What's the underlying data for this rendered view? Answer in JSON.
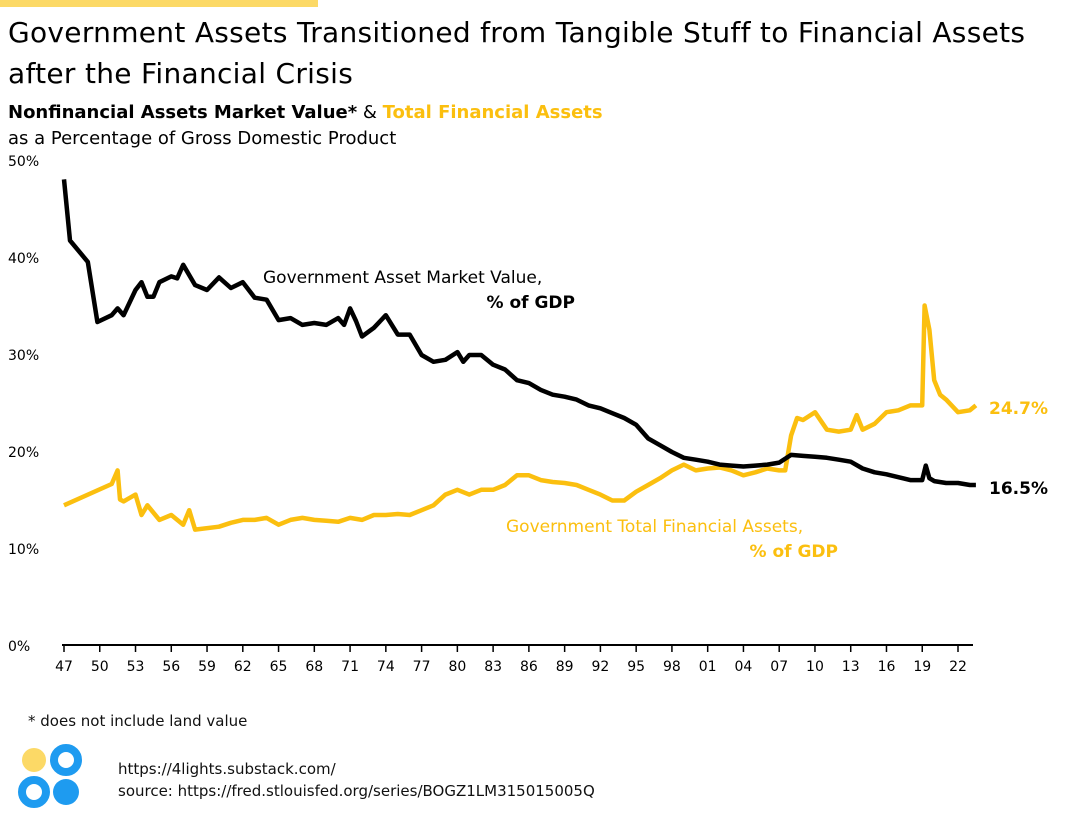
{
  "header": {
    "title": "Government Assets Transitioned from Tangible Stuff to Financial Assets after the Financial Crisis",
    "subtitle_part1": "Nonfinancial Assets Market Value*",
    "subtitle_amp": " & ",
    "subtitle_part2": "Total Financial Assets",
    "subtitle_line2": "as a Percentage of Gross Domestic Product"
  },
  "colors": {
    "nonfinancial": "#000000",
    "financial": "#fbbf0f",
    "accent_bar": "#fcd966",
    "logo_blue": "#1e9bf0",
    "logo_yellow": "#fcd966"
  },
  "chart_data": {
    "type": "line",
    "title": "Government Assets Transitioned from Tangible Stuff to Financial Assets after the Financial Crisis",
    "ylabel": "% of GDP",
    "ylim": [
      0,
      50
    ],
    "xlim": [
      1947,
      2023.5
    ],
    "y_ticks": [
      "0%",
      "10%",
      "20%",
      "30%",
      "40%",
      "50%"
    ],
    "y_tick_values": [
      0,
      10,
      20,
      30,
      40,
      50
    ],
    "x_ticks": [
      "47",
      "50",
      "53",
      "56",
      "59",
      "62",
      "65",
      "68",
      "71",
      "74",
      "77",
      "80",
      "83",
      "86",
      "89",
      "92",
      "95",
      "98",
      "01",
      "04",
      "07",
      "10",
      "13",
      "16",
      "19",
      "22"
    ],
    "grid": false,
    "series": [
      {
        "name": "Government Asset Market Value, % of GDP",
        "label_line1": "Government Asset Market Value,",
        "label_line2": "% of GDP",
        "end_label": "16.5%",
        "points": [
          [
            1947,
            48
          ],
          [
            1947.5,
            41.7
          ],
          [
            1949,
            39.5
          ],
          [
            1949.8,
            33.3
          ],
          [
            1951,
            34
          ],
          [
            1951.5,
            34.7
          ],
          [
            1952,
            34
          ],
          [
            1953,
            36.6
          ],
          [
            1953.5,
            37.4
          ],
          [
            1954,
            35.9
          ],
          [
            1954.5,
            35.9
          ],
          [
            1955,
            37.4
          ],
          [
            1956,
            38
          ],
          [
            1956.5,
            37.8
          ],
          [
            1957,
            39.2
          ],
          [
            1958,
            37.1
          ],
          [
            1959,
            36.6
          ],
          [
            1960,
            37.9
          ],
          [
            1961,
            36.8
          ],
          [
            1962,
            37.4
          ],
          [
            1963,
            35.8
          ],
          [
            1964,
            35.6
          ],
          [
            1965,
            33.5
          ],
          [
            1966,
            33.7
          ],
          [
            1967,
            33
          ],
          [
            1968,
            33.2
          ],
          [
            1969,
            33
          ],
          [
            1970,
            33.7
          ],
          [
            1970.5,
            33
          ],
          [
            1971,
            34.7
          ],
          [
            1971.5,
            33.4
          ],
          [
            1972,
            31.8
          ],
          [
            1973,
            32.7
          ],
          [
            1974,
            34
          ],
          [
            1975,
            32
          ],
          [
            1976,
            32
          ],
          [
            1977,
            29.9
          ],
          [
            1978,
            29.2
          ],
          [
            1979,
            29.4
          ],
          [
            1980,
            30.2
          ],
          [
            1980.5,
            29.2
          ],
          [
            1981,
            29.9
          ],
          [
            1982,
            29.9
          ],
          [
            1983,
            28.9
          ],
          [
            1984,
            28.4
          ],
          [
            1985,
            27.3
          ],
          [
            1986,
            27
          ],
          [
            1987,
            26.3
          ],
          [
            1988,
            25.8
          ],
          [
            1989,
            25.6
          ],
          [
            1990,
            25.3
          ],
          [
            1991,
            24.7
          ],
          [
            1992,
            24.4
          ],
          [
            1993,
            23.9
          ],
          [
            1994,
            23.4
          ],
          [
            1995,
            22.7
          ],
          [
            1996,
            21.3
          ],
          [
            1997,
            20.6
          ],
          [
            1998,
            19.9
          ],
          [
            1999,
            19.3
          ],
          [
            2000,
            19.1
          ],
          [
            2001,
            18.9
          ],
          [
            2002,
            18.6
          ],
          [
            2003,
            18.5
          ],
          [
            2004,
            18.4
          ],
          [
            2005,
            18.5
          ],
          [
            2006,
            18.6
          ],
          [
            2007,
            18.8
          ],
          [
            2008,
            19.6
          ],
          [
            2009,
            19.5
          ],
          [
            2010,
            19.4
          ],
          [
            2011,
            19.3
          ],
          [
            2012,
            19.1
          ],
          [
            2013,
            18.9
          ],
          [
            2014,
            18.2
          ],
          [
            2015,
            17.8
          ],
          [
            2016,
            17.6
          ],
          [
            2017,
            17.3
          ],
          [
            2018,
            17
          ],
          [
            2019,
            17
          ],
          [
            2019.3,
            18.5
          ],
          [
            2019.6,
            17.2
          ],
          [
            2020,
            16.9
          ],
          [
            2021,
            16.7
          ],
          [
            2022,
            16.7
          ],
          [
            2023,
            16.5
          ],
          [
            2023.5,
            16.5
          ]
        ]
      },
      {
        "name": "Government Total Financial Assets, % of GDP",
        "label_line1": "Government Total Financial Assets,",
        "label_line2": "% of GDP",
        "end_label": "24.7%",
        "points": [
          [
            1947,
            14.4
          ],
          [
            1951,
            16.6
          ],
          [
            1951.5,
            18
          ],
          [
            1951.7,
            15
          ],
          [
            1952,
            14.8
          ],
          [
            1953,
            15.5
          ],
          [
            1953.5,
            13.4
          ],
          [
            1954,
            14.4
          ],
          [
            1955,
            12.9
          ],
          [
            1956,
            13.4
          ],
          [
            1957,
            12.4
          ],
          [
            1957.5,
            13.9
          ],
          [
            1958,
            11.9
          ],
          [
            1960,
            12.2
          ],
          [
            1961,
            12.6
          ],
          [
            1962,
            12.9
          ],
          [
            1963,
            12.9
          ],
          [
            1964,
            13.1
          ],
          [
            1965,
            12.4
          ],
          [
            1966,
            12.9
          ],
          [
            1967,
            13.1
          ],
          [
            1968,
            12.9
          ],
          [
            1969,
            12.8
          ],
          [
            1970,
            12.7
          ],
          [
            1971,
            13.1
          ],
          [
            1972,
            12.9
          ],
          [
            1973,
            13.4
          ],
          [
            1974,
            13.4
          ],
          [
            1975,
            13.5
          ],
          [
            1976,
            13.4
          ],
          [
            1977,
            13.9
          ],
          [
            1978,
            14.4
          ],
          [
            1979,
            15.5
          ],
          [
            1980,
            16
          ],
          [
            1981,
            15.5
          ],
          [
            1982,
            16
          ],
          [
            1983,
            16
          ],
          [
            1984,
            16.5
          ],
          [
            1985,
            17.5
          ],
          [
            1986,
            17.5
          ],
          [
            1987,
            17
          ],
          [
            1988,
            16.8
          ],
          [
            1989,
            16.7
          ],
          [
            1990,
            16.5
          ],
          [
            1991,
            16
          ],
          [
            1992,
            15.5
          ],
          [
            1993,
            14.9
          ],
          [
            1994,
            14.9
          ],
          [
            1995,
            15.8
          ],
          [
            1996,
            16.5
          ],
          [
            1997,
            17.2
          ],
          [
            1998,
            18
          ],
          [
            1999,
            18.6
          ],
          [
            2000,
            18
          ],
          [
            2001,
            18.2
          ],
          [
            2002,
            18.3
          ],
          [
            2003,
            18
          ],
          [
            2004,
            17.5
          ],
          [
            2005,
            17.8
          ],
          [
            2006,
            18.2
          ],
          [
            2007,
            18
          ],
          [
            2007.5,
            18
          ],
          [
            2008,
            21.6
          ],
          [
            2008.5,
            23.4
          ],
          [
            2009,
            23.2
          ],
          [
            2010,
            24
          ],
          [
            2011,
            22.2
          ],
          [
            2012,
            22
          ],
          [
            2013,
            22.2
          ],
          [
            2013.5,
            23.7
          ],
          [
            2014,
            22.2
          ],
          [
            2015,
            22.8
          ],
          [
            2016,
            24
          ],
          [
            2017,
            24.2
          ],
          [
            2018,
            24.7
          ],
          [
            2019,
            24.7
          ],
          [
            2019.2,
            35
          ],
          [
            2019.6,
            32.5
          ],
          [
            2020,
            27.3
          ],
          [
            2020.5,
            25.8
          ],
          [
            2021,
            25.3
          ],
          [
            2022,
            24
          ],
          [
            2023,
            24.2
          ],
          [
            2023.5,
            24.7
          ]
        ]
      }
    ]
  },
  "footer": {
    "note": "* does not include land value",
    "site": "https://4lights.substack.com/",
    "source": "source: https://fred.stlouisfed.org/series/BOGZ1LM315015005Q"
  }
}
